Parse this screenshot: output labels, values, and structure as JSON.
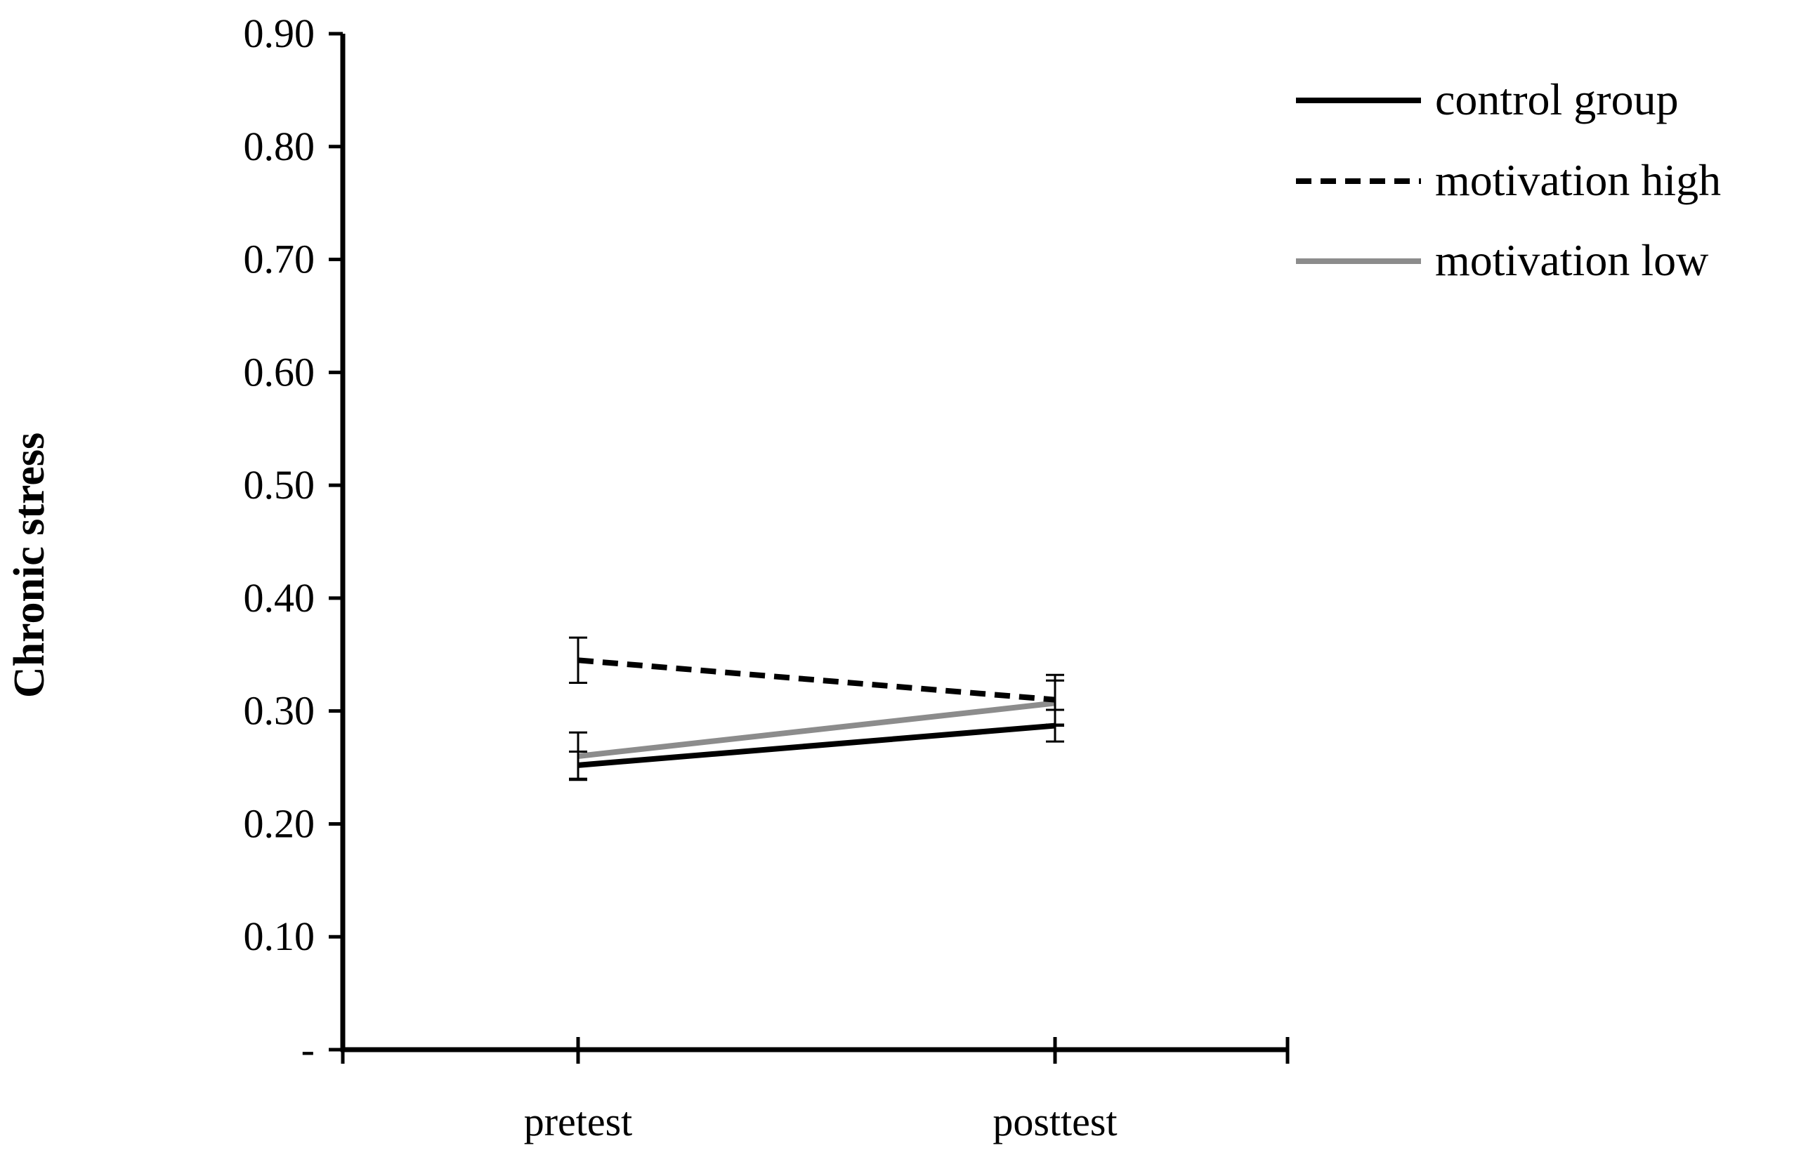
{
  "chart_data": {
    "type": "line",
    "title": "",
    "xlabel": "",
    "ylabel": "Chronic stress",
    "categories": [
      "pretest",
      "posttest"
    ],
    "ylim": [
      0,
      0.9
    ],
    "y_ticks": [
      0,
      0.1,
      0.2,
      0.3,
      0.4,
      0.5,
      0.6,
      0.7,
      0.8,
      0.9
    ],
    "y_tick_labels": [
      "-",
      "0.10",
      "0.20",
      "0.30",
      "0.40",
      "0.50",
      "0.60",
      "0.70",
      "0.80",
      "0.90"
    ],
    "grid": false,
    "legend_position": "top-right",
    "series": [
      {
        "name": "control group",
        "values": [
          0.252,
          0.287
        ],
        "error": [
          0.012,
          0.014
        ],
        "color": "#000000",
        "line_style": "solid"
      },
      {
        "name": "motivation high",
        "values": [
          0.345,
          0.31
        ],
        "error": [
          0.02,
          0.022
        ],
        "color": "#000000",
        "line_style": "dashed"
      },
      {
        "name": "motivation low",
        "values": [
          0.26,
          0.307
        ],
        "error": [
          0.021,
          0.02
        ],
        "color": "#8c8c8c",
        "line_style": "solid"
      }
    ]
  }
}
